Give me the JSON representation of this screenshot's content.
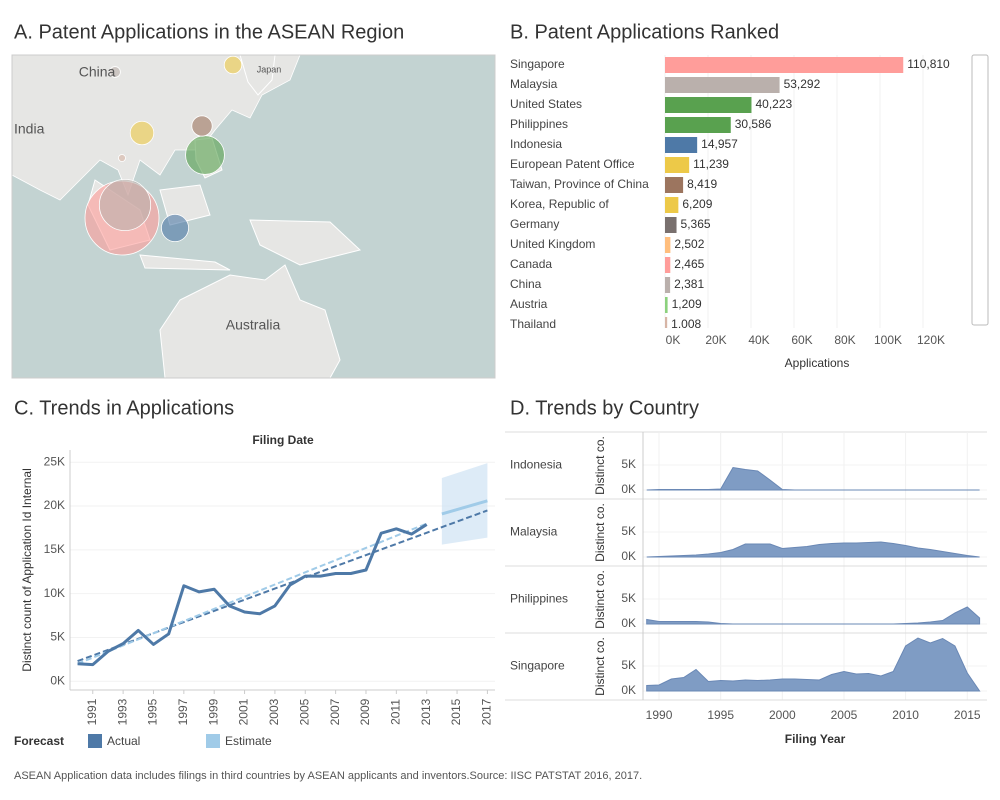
{
  "chart_data": [
    {
      "type": "map",
      "title": "A. Patent Applications in the ASEAN Region",
      "labels": [
        "China",
        "India",
        "Japan",
        "Australia"
      ]
    },
    {
      "type": "hbar",
      "title": "B. Patent Applications Ranked",
      "categories": [
        "Singapore",
        "Malaysia",
        "United States",
        "Philippines",
        "Indonesia",
        "European Patent Office",
        "Taiwan, Province of China",
        "Korea, Republic of",
        "Germany",
        "United Kingdom",
        "Canada",
        "China",
        "Austria",
        "Thailand"
      ],
      "values": [
        110810,
        53292,
        40223,
        30586,
        14957,
        11239,
        8419,
        6209,
        5365,
        2502,
        2465,
        2381,
        1209,
        1008
      ],
      "value_labels": [
        "110,810",
        "53,292",
        "40,223",
        "30,586",
        "14,957",
        "11,239",
        "8,419",
        "6,209",
        "5,365",
        "2,502",
        "2,465",
        "2,381",
        "1,209",
        "1,008"
      ],
      "colors": [
        "#ff9d9a",
        "#bab0ac",
        "#59a14f",
        "#59a14f",
        "#4e79a7",
        "#edc948",
        "#9c755f",
        "#edc948",
        "#79706e",
        "#ffbe7d",
        "#ff9d9a",
        "#bab0ac",
        "#8cd17d",
        "#d7b5a6"
      ],
      "xlim": [
        0,
        120000
      ],
      "xticks": [
        {
          "value": 0,
          "label": "0K"
        },
        {
          "value": 20000,
          "label": "20K"
        },
        {
          "value": 40000,
          "label": "40K"
        },
        {
          "value": 60000,
          "label": "60K"
        },
        {
          "value": 80000,
          "label": "80K"
        },
        {
          "value": 100000,
          "label": "100K"
        },
        {
          "value": 120000,
          "label": "120K"
        }
      ],
      "x_label": "Applications",
      "grid": true
    },
    {
      "type": "line",
      "title": "C. Trends in Applications",
      "subtitle": "Filing Date",
      "y_label": "Distinct count of Application Id Internal",
      "x": [
        1990,
        1991,
        1992,
        1993,
        1994,
        1995,
        1996,
        1997,
        1998,
        1999,
        2000,
        2001,
        2002,
        2003,
        2004,
        2005,
        2006,
        2007,
        2008,
        2009,
        2010,
        2011,
        2012,
        2013,
        2014,
        2015,
        2016,
        2017
      ],
      "series": [
        {
          "name": "Actual",
          "color": "#4e79a7",
          "values": [
            2000,
            1900,
            3400,
            4300,
            5800,
            4200,
            5400,
            10900,
            10200,
            10500,
            8600,
            7900,
            7700,
            8600,
            11000,
            12000,
            12000,
            12300,
            12300,
            12700,
            16900,
            17400,
            16800,
            17900,
            null,
            null,
            null,
            null
          ]
        },
        {
          "name": "Estimate",
          "color": "#a0cbe8",
          "values": [
            null,
            null,
            null,
            null,
            null,
            null,
            null,
            null,
            null,
            null,
            null,
            null,
            null,
            null,
            null,
            null,
            null,
            null,
            null,
            null,
            null,
            null,
            null,
            null,
            19100,
            19600,
            20100,
            20600
          ]
        }
      ],
      "trend_lines": [
        {
          "color": "#4e79a7",
          "x": [
            1990,
            2017
          ],
          "values": [
            2300,
            19500
          ]
        },
        {
          "color": "#a0cbe8",
          "x": [
            1990,
            2013
          ],
          "values": [
            2000,
            18000
          ]
        }
      ],
      "forecast_band": {
        "color": "#cfe3f3",
        "x": [
          2014,
          2017
        ],
        "low": [
          15600,
          16400
        ],
        "high": [
          23200,
          24900
        ]
      },
      "xlim": [
        1989.5,
        2017.5
      ],
      "ylim": [
        -1000,
        26400
      ],
      "xticks": [
        1991,
        1993,
        1995,
        1997,
        1999,
        2001,
        2003,
        2005,
        2007,
        2009,
        2011,
        2013,
        2015,
        2017
      ],
      "yticks": [
        {
          "value": 0,
          "label": "0K"
        },
        {
          "value": 5000,
          "label": "5K"
        },
        {
          "value": 10000,
          "label": "10K"
        },
        {
          "value": 15000,
          "label": "15K"
        },
        {
          "value": 20000,
          "label": "20K"
        },
        {
          "value": 25000,
          "label": "25K"
        }
      ],
      "legend_title": "Forecast",
      "grid": true
    },
    {
      "type": "area_multiples",
      "title": "D. Trends by Country",
      "y_label": "Distinct co.",
      "x_label": "Filing Year",
      "color": "#7f9cc4",
      "x": [
        1989,
        1990,
        1991,
        1992,
        1993,
        1994,
        1995,
        1996,
        1997,
        1998,
        1999,
        2000,
        2001,
        2002,
        2003,
        2004,
        2005,
        2006,
        2007,
        2008,
        2009,
        2010,
        2011,
        2012,
        2013,
        2014,
        2015,
        2016
      ],
      "series": [
        {
          "name": "Indonesia",
          "values": [
            0,
            100,
            100,
            100,
            100,
            100,
            200,
            4500,
            4100,
            3800,
            2000,
            100,
            0,
            0,
            0,
            0,
            0,
            0,
            0,
            0,
            0,
            0,
            0,
            0,
            0,
            0,
            0,
            0
          ]
        },
        {
          "name": "Malaysia",
          "values": [
            0,
            100,
            200,
            300,
            400,
            600,
            900,
            1500,
            2600,
            2600,
            2600,
            1700,
            1900,
            2100,
            2500,
            2700,
            2800,
            2800,
            2900,
            3000,
            2700,
            2300,
            1800,
            1500,
            1100,
            700,
            300,
            0
          ]
        },
        {
          "name": "Philippines",
          "values": [
            900,
            500,
            500,
            500,
            500,
            400,
            100,
            0,
            0,
            0,
            0,
            0,
            0,
            0,
            0,
            0,
            0,
            0,
            0,
            0,
            0,
            100,
            200,
            400,
            700,
            2200,
            3400,
            1200
          ]
        },
        {
          "name": "Singapore",
          "values": [
            1100,
            1200,
            2400,
            2700,
            4300,
            1900,
            2100,
            2000,
            2200,
            2100,
            2200,
            2400,
            2400,
            2300,
            2200,
            3300,
            3900,
            3400,
            3500,
            3000,
            3900,
            9000,
            10600,
            9600,
            10500,
            9000,
            3600,
            0
          ]
        }
      ],
      "xlim": [
        1988.7,
        2016.6
      ],
      "ylim": [
        -1800,
        11600
      ],
      "xticks": [
        1990,
        1995,
        2000,
        2005,
        2010,
        2015
      ],
      "yticks": [
        {
          "value": 0,
          "label": "0K"
        },
        {
          "value": 5000,
          "label": "5K"
        }
      ],
      "grid": true
    }
  ],
  "footnote": "ASEAN Application data includes filings in third countries by ASEAN applicants and inventors.Source: IISC PATSTAT 2016, 2017."
}
